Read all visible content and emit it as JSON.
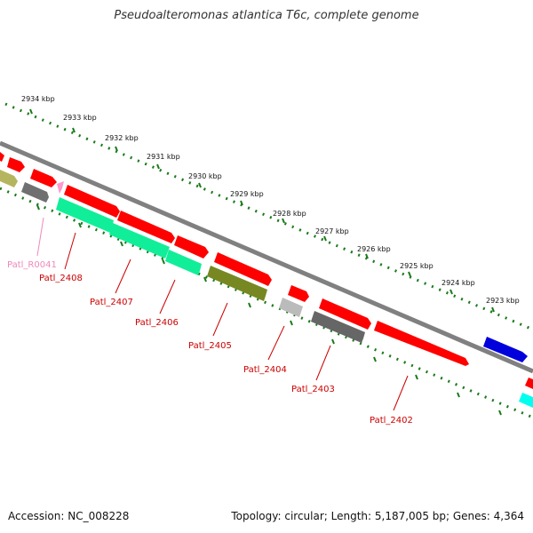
{
  "title": "Pseudoalteromonas atlantica T6c, complete genome",
  "footer": {
    "accession": "Accession: NC_008228",
    "summary": "Topology: circular; Length: 5,187,005 bp; Genes: 4,364"
  },
  "scale_labels": [
    "2934 kbp",
    "2933 kbp",
    "2932 kbp",
    "2931 kbp",
    "2930 kbp",
    "2929 kbp",
    "2928 kbp",
    "2927 kbp",
    "2926 kbp",
    "2925 kbp",
    "2924 kbp",
    "2923 kbp"
  ],
  "gene_labels": [
    {
      "text": "Patl_R0041",
      "color": "#ee88bb"
    },
    {
      "text": "Patl_2408",
      "color": "#cc0000"
    },
    {
      "text": "Patl_2407",
      "color": "#cc0000"
    },
    {
      "text": "Patl_2406",
      "color": "#cc0000"
    },
    {
      "text": "Patl_2405",
      "color": "#cc0000"
    },
    {
      "text": "Patl_2404",
      "color": "#cc0000"
    },
    {
      "text": "Patl_2403",
      "color": "#cc0000"
    },
    {
      "text": "Patl_2402",
      "color": "#cc0000"
    }
  ],
  "colors": {
    "cds": "#ff0000",
    "trna": "#ff99cc",
    "backbone": "#888888",
    "tick": "#1a7a1a",
    "blue_cds": "#0000dd",
    "cyan_cds": "#00ffee"
  }
}
